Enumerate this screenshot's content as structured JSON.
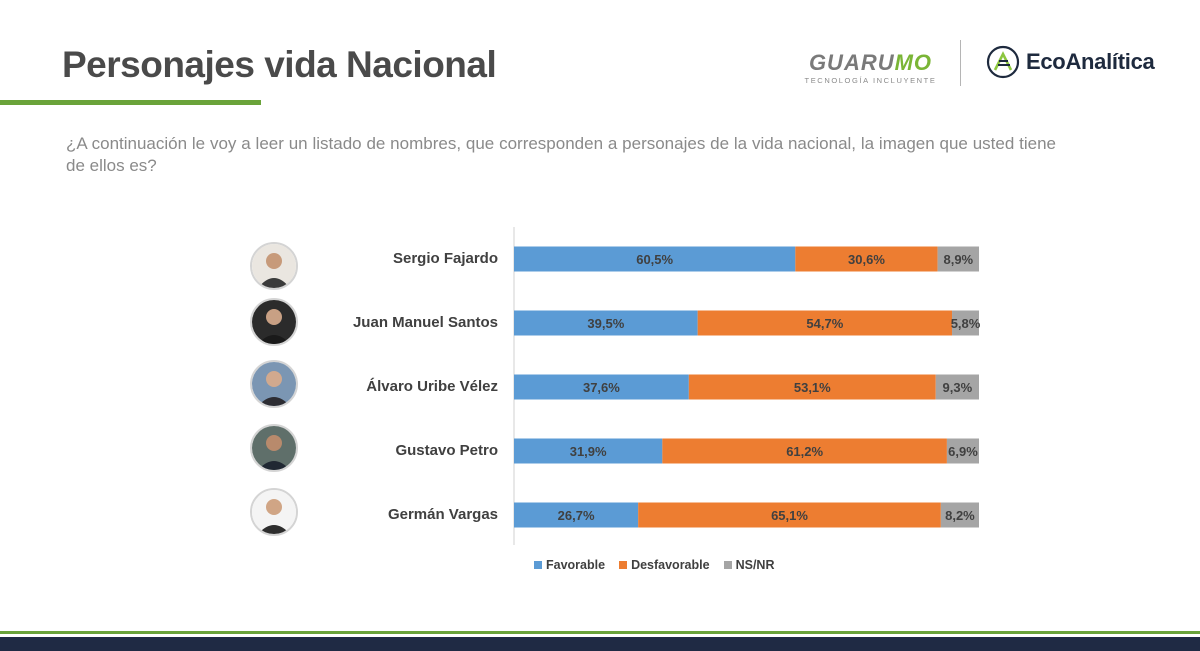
{
  "header": {
    "title": "Personajes vida Nacional",
    "logo_guarumo_main": "GUARU",
    "logo_guarumo_accent": "MO",
    "logo_guarumo_tagline": "TECNOLOGÍA INCLUYENTE",
    "logo_eco": "EcoAnalítica"
  },
  "question": "¿A continuación le voy a leer un listado de nombres, que corresponden a personajes de la vida nacional, la imagen que usted tiene de ellos es?",
  "colors": {
    "favorable": "#5b9bd5",
    "desfavorable": "#ed7d31",
    "nsnr": "#a5a5a5",
    "accent_green": "#6aa33a",
    "navy": "#1f2a44"
  },
  "chart_data": {
    "type": "bar",
    "orientation": "horizontal",
    "stacked": true,
    "categories": [
      "Sergio Fajardo",
      "Juan Manuel Santos",
      "Álvaro Uribe Vélez",
      "Gustavo Petro",
      "Germán Vargas"
    ],
    "series": [
      {
        "name": "Favorable",
        "values": [
          60.5,
          39.5,
          37.6,
          31.9,
          26.7
        ],
        "labels": [
          "60,5%",
          "39,5%",
          "37,6%",
          "31,9%",
          "26,7%"
        ]
      },
      {
        "name": "Desfavorable",
        "values": [
          30.6,
          54.7,
          53.1,
          61.2,
          65.1
        ],
        "labels": [
          "30,6%",
          "54,7%",
          "53,1%",
          "61,2%",
          "65,1%"
        ]
      },
      {
        "name": "NS/NR",
        "values": [
          8.9,
          5.8,
          9.3,
          6.9,
          8.2
        ],
        "labels": [
          "8,9%",
          "5,8%",
          "9,3%",
          "6,9%",
          "8,2%"
        ]
      }
    ],
    "xlim": [
      0,
      100
    ],
    "legend_position": "bottom",
    "grid": false
  }
}
